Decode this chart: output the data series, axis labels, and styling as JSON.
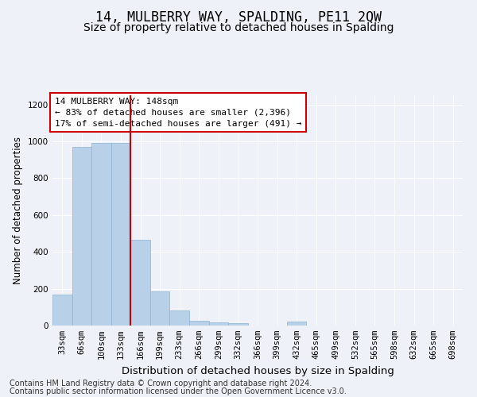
{
  "title": "14, MULBERRY WAY, SPALDING, PE11 2QW",
  "subtitle": "Size of property relative to detached houses in Spalding",
  "xlabel": "Distribution of detached houses by size in Spalding",
  "ylabel": "Number of detached properties",
  "categories": [
    "33sqm",
    "66sqm",
    "100sqm",
    "133sqm",
    "166sqm",
    "199sqm",
    "233sqm",
    "266sqm",
    "299sqm",
    "332sqm",
    "366sqm",
    "399sqm",
    "432sqm",
    "465sqm",
    "499sqm",
    "532sqm",
    "565sqm",
    "598sqm",
    "632sqm",
    "665sqm",
    "698sqm"
  ],
  "values": [
    170,
    970,
    990,
    990,
    465,
    185,
    80,
    25,
    18,
    12,
    0,
    0,
    20,
    0,
    0,
    0,
    0,
    0,
    0,
    0,
    0
  ],
  "bar_color": "#b8d0e8",
  "bar_edge_color": "#8ab4d4",
  "vline_x_index": 3.5,
  "vline_color": "#cc0000",
  "annotation_text": "14 MULBERRY WAY: 148sqm\n← 83% of detached houses are smaller (2,396)\n17% of semi-detached houses are larger (491) →",
  "annotation_box_color": "#ffffff",
  "annotation_box_edge_color": "#cc0000",
  "ylim": [
    0,
    1250
  ],
  "yticks": [
    0,
    200,
    400,
    600,
    800,
    1000,
    1200
  ],
  "background_color": "#eef2f8",
  "footer_line1": "Contains HM Land Registry data © Crown copyright and database right 2024.",
  "footer_line2": "Contains public sector information licensed under the Open Government Licence v3.0.",
  "title_fontsize": 12,
  "subtitle_fontsize": 10,
  "xlabel_fontsize": 9.5,
  "ylabel_fontsize": 8.5,
  "tick_fontsize": 7.5,
  "annotation_fontsize": 8,
  "footer_fontsize": 7
}
